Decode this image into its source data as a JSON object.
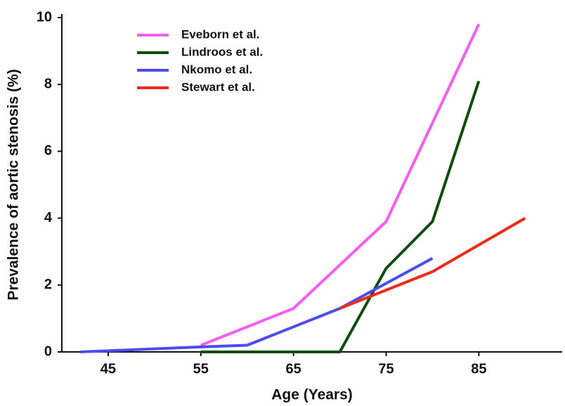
{
  "chart_data": {
    "type": "line",
    "x_label": "Age (Years)",
    "y_label": "Prevalence of aortic stenosis (%)",
    "xlim": [
      40,
      94
    ],
    "xticks": [
      45,
      55,
      65,
      75,
      85
    ],
    "ylim": [
      0,
      10
    ],
    "yticks": [
      0,
      2,
      4,
      6,
      8,
      10
    ],
    "grid": false,
    "legend": "upper left",
    "series": [
      {
        "name": "Eveborn et al.",
        "color": "#f55cf0",
        "x": [
          55,
          65,
          75,
          85
        ],
        "values": [
          0.2,
          1.3,
          3.9,
          9.8
        ]
      },
      {
        "name": "Lindroos et al.",
        "color": "#0f4d0a",
        "x": [
          55,
          70,
          75,
          80,
          85
        ],
        "values": [
          0,
          0,
          2.5,
          3.9,
          8.1
        ]
      },
      {
        "name": "Nkomo et al.",
        "color": "#4a4cf0",
        "x": [
          42,
          55,
          60,
          70,
          80
        ],
        "values": [
          0,
          0.15,
          0.2,
          1.3,
          2.8
        ]
      },
      {
        "name": "Stewart et al.",
        "color": "#f02a1a",
        "x": [
          70,
          80,
          90
        ],
        "values": [
          1.3,
          2.4,
          4.0
        ]
      }
    ]
  }
}
